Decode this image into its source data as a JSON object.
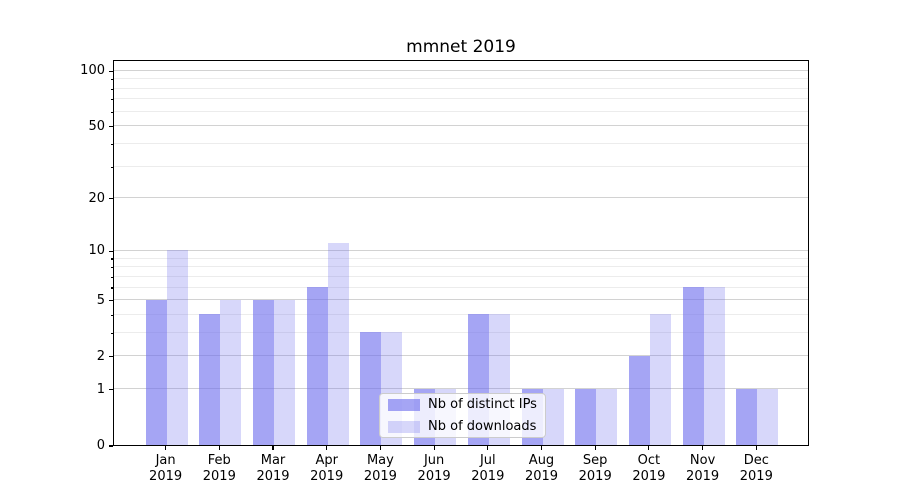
{
  "title": "mmnet 2019",
  "chart_data": {
    "type": "bar",
    "title": "mmnet 2019",
    "x_tick_months": [
      "Jan",
      "Feb",
      "Mar",
      "Apr",
      "May",
      "Jun",
      "Jul",
      "Aug",
      "Sep",
      "Oct",
      "Nov",
      "Dec"
    ],
    "x_tick_year": "2019",
    "series": [
      {
        "name": "Nb of distinct IPs",
        "color": "rgba(110,110,238,0.62)",
        "values": [
          5,
          4,
          5,
          6,
          3,
          1,
          4,
          1,
          1,
          2,
          6,
          1
        ]
      },
      {
        "name": "Nb of downloads",
        "color": "rgba(110,110,238,0.28)",
        "values": [
          10,
          5,
          5,
          11,
          3,
          1,
          4,
          1,
          1,
          4,
          6,
          1
        ]
      }
    ],
    "xlabel": "",
    "ylabel": "",
    "y_scale": "log10(1+y)",
    "y_major_ticks": [
      0,
      1,
      2,
      5,
      10,
      20,
      50,
      100
    ],
    "y_minor_ticks": [
      3,
      4,
      6,
      7,
      8,
      9,
      30,
      40,
      60,
      70,
      80,
      90
    ],
    "ylim": [
      0,
      115
    ],
    "grid": true,
    "legend_position": "lower center",
    "colors": {
      "bar_base": "#6e6eee",
      "bar_dark": "#a8a8f6",
      "bar_light": "#d8d8fa",
      "grid_major": "#d2d2d2",
      "grid_minor": "#ececec",
      "spine": "#000000",
      "text": "#000000"
    }
  }
}
